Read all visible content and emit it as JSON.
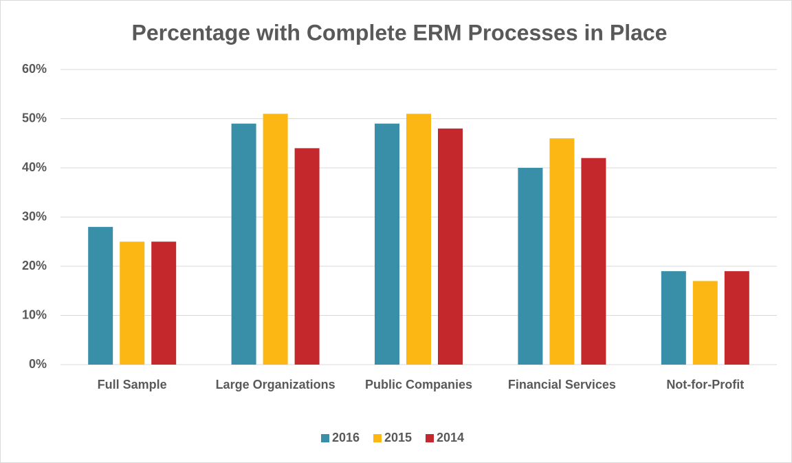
{
  "chart_data": {
    "type": "bar",
    "title": "Percentage with Complete ERM Processes in Place",
    "categories": [
      "Full Sample",
      "Large Organizations",
      "Public Companies",
      "Financial Services",
      "Not-for-Profit"
    ],
    "series": [
      {
        "name": "2016",
        "color": "#3a8fa8",
        "values": [
          28,
          49,
          49,
          40,
          19
        ]
      },
      {
        "name": "2015",
        "color": "#fdb714",
        "values": [
          25,
          51,
          51,
          46,
          17
        ]
      },
      {
        "name": "2014",
        "color": "#c4282d",
        "values": [
          25,
          44,
          48,
          42,
          19
        ]
      }
    ],
    "ylim": [
      0,
      60
    ],
    "yticks": [
      {
        "value": 0,
        "label": "0%"
      },
      {
        "value": 10,
        "label": "10%"
      },
      {
        "value": 20,
        "label": "20%"
      },
      {
        "value": 30,
        "label": "30%"
      },
      {
        "value": 40,
        "label": "40%"
      },
      {
        "value": 50,
        "label": "50%"
      },
      {
        "value": 60,
        "label": "60%"
      }
    ],
    "grid": true,
    "legend": "bottom"
  }
}
